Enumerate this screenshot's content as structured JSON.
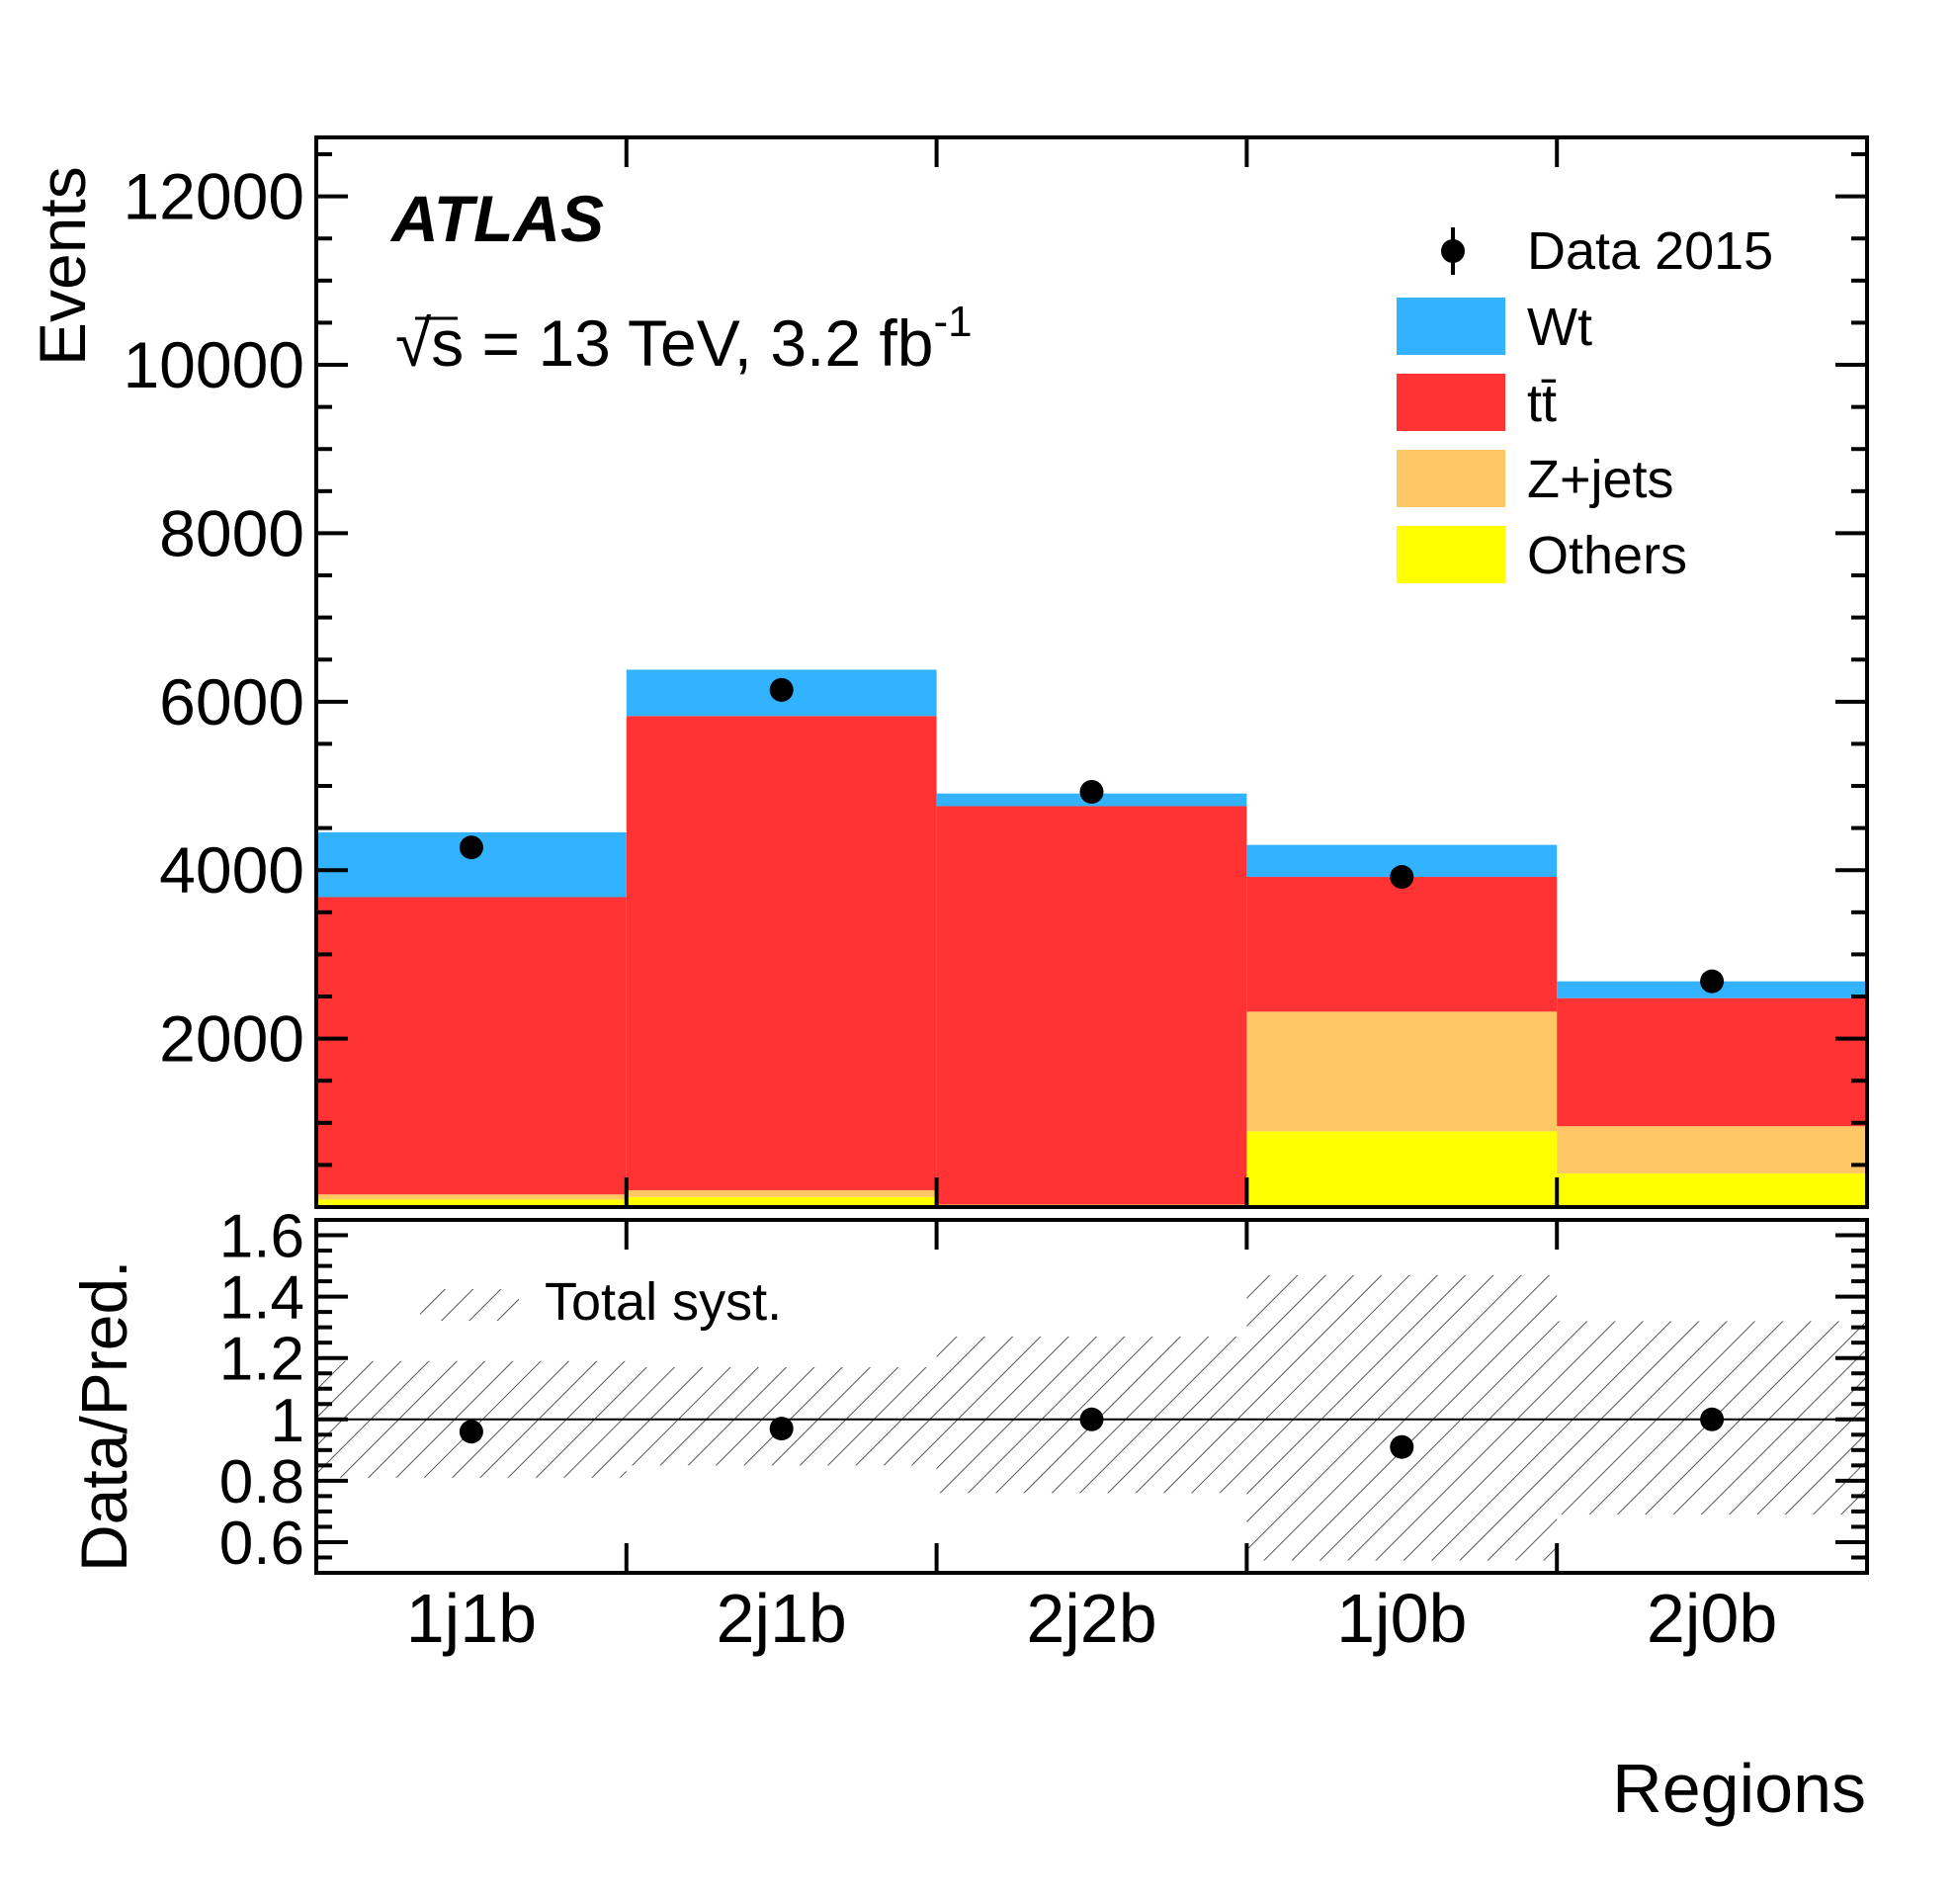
{
  "chart_data": [
    {
      "type": "bar",
      "stacked": true,
      "title": "ATLAS",
      "subtitle": "√s = 13 TeV, 3.2 fb",
      "subtitle_superscript": "-1",
      "xlabel": "Regions",
      "ylabel": "Events",
      "ylim": [
        0,
        12700
      ],
      "yticks": [
        2000,
        4000,
        6000,
        8000,
        10000,
        12000
      ],
      "legend_position": "top-right",
      "categories": [
        "1j1b",
        "2j1b",
        "2j2b",
        "1j0b",
        "2j0b"
      ],
      "series": [
        {
          "name": "Others",
          "color": "#ffff00",
          "values": [
            90,
            120,
            20,
            900,
            400
          ]
        },
        {
          "name": "Z+jets",
          "color": "#fdc765",
          "values": [
            60,
            80,
            10,
            1420,
            560
          ]
        },
        {
          "name": "tt̄",
          "color": "#ff3333",
          "values": [
            3530,
            5630,
            4730,
            1600,
            1520
          ]
        },
        {
          "name": "Wt",
          "color": "#33b2ff",
          "values": [
            770,
            550,
            150,
            380,
            200
          ]
        }
      ],
      "data": {
        "name": "Data 2015",
        "color": "#000000",
        "values": [
          4270,
          6140,
          4930,
          3920,
          2680
        ]
      }
    },
    {
      "type": "scatter",
      "ylabel": "Data/Pred.",
      "ylim": [
        0.5,
        1.65
      ],
      "yticks": [
        0.6,
        0.8,
        1,
        1.2,
        1.4,
        1.6
      ],
      "ytick_labels": [
        "0.6",
        "0.8",
        "1",
        "1.2",
        "1.4",
        "1.6"
      ],
      "reference_line": 1,
      "categories": [
        "1j1b",
        "2j1b",
        "2j2b",
        "1j0b",
        "2j0b"
      ],
      "ratio": [
        0.96,
        0.97,
        1.0,
        0.91,
        1.0
      ],
      "syst_band": {
        "label": "Total syst.",
        "down": [
          0.81,
          0.85,
          0.76,
          0.54,
          0.69
        ],
        "up": [
          1.19,
          1.17,
          1.27,
          1.47,
          1.32
        ]
      }
    }
  ]
}
